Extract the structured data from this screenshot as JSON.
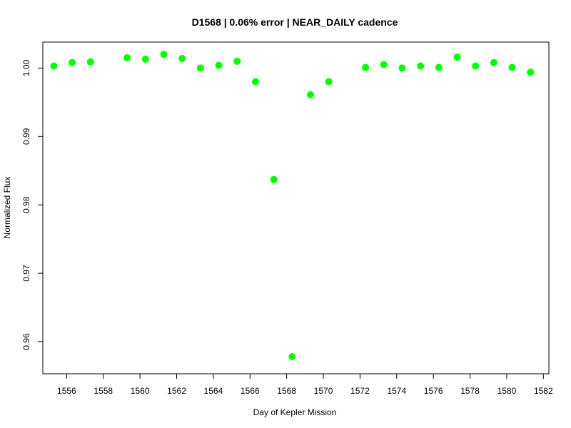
{
  "chart_data": {
    "type": "scatter",
    "title": "D1568 | 0.06% error | NEAR_DAILY cadence",
    "xlabel": "Day of Kepler Mission",
    "ylabel": "Normalized Flux",
    "xlim": [
      1554.7,
      1582.3
    ],
    "ylim": [
      0.9553,
      1.0038
    ],
    "x_ticks": [
      1556,
      1558,
      1560,
      1562,
      1564,
      1566,
      1568,
      1570,
      1572,
      1574,
      1576,
      1578,
      1580,
      1582
    ],
    "y_ticks": [
      0.96,
      0.97,
      0.98,
      0.99,
      1.0
    ],
    "x_tick_labels": [
      "1556",
      "1558",
      "1560",
      "1562",
      "1564",
      "1566",
      "1568",
      "1570",
      "1572",
      "1574",
      "1576",
      "1578",
      "1580",
      "1582"
    ],
    "y_tick_labels": [
      "0.96",
      "0.97",
      "0.98",
      "0.99",
      "1.00"
    ],
    "point_color": "#00ff00",
    "grid": false,
    "points": [
      {
        "x": 1555.3,
        "y": 1.0003
      },
      {
        "x": 1556.3,
        "y": 1.0008
      },
      {
        "x": 1557.3,
        "y": 1.0009
      },
      {
        "x": 1559.3,
        "y": 1.0015
      },
      {
        "x": 1560.3,
        "y": 1.0013
      },
      {
        "x": 1561.3,
        "y": 1.002
      },
      {
        "x": 1562.3,
        "y": 1.0014
      },
      {
        "x": 1563.3,
        "y": 1.0
      },
      {
        "x": 1564.3,
        "y": 1.0004
      },
      {
        "x": 1565.3,
        "y": 1.001
      },
      {
        "x": 1566.3,
        "y": 0.998
      },
      {
        "x": 1567.3,
        "y": 0.9837
      },
      {
        "x": 1568.3,
        "y": 0.9578
      },
      {
        "x": 1569.3,
        "y": 0.9961
      },
      {
        "x": 1570.3,
        "y": 0.998
      },
      {
        "x": 1572.3,
        "y": 1.0001
      },
      {
        "x": 1573.3,
        "y": 1.0005
      },
      {
        "x": 1574.3,
        "y": 1.0
      },
      {
        "x": 1575.3,
        "y": 1.0003
      },
      {
        "x": 1576.3,
        "y": 1.0001
      },
      {
        "x": 1577.3,
        "y": 1.0016
      },
      {
        "x": 1578.3,
        "y": 1.0003
      },
      {
        "x": 1579.3,
        "y": 1.0008
      },
      {
        "x": 1580.3,
        "y": 1.0001
      },
      {
        "x": 1581.3,
        "y": 0.9994
      }
    ]
  }
}
